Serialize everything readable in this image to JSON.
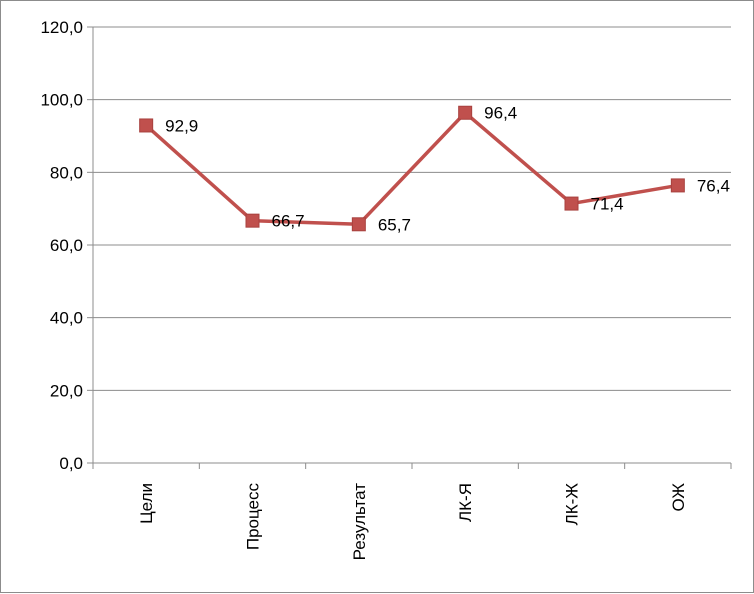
{
  "chart_data": {
    "type": "line",
    "title": "",
    "xlabel": "",
    "ylabel": "",
    "categories": [
      "Цели",
      "Процесс",
      "Результат",
      "ЛК-Я",
      "ЛК-Ж",
      "ОЖ"
    ],
    "series": [
      {
        "values": [
          92.9,
          66.7,
          65.7,
          96.4,
          71.4,
          76.4
        ],
        "data_labels": [
          "92,9",
          "66,7",
          "65,7",
          "96,4",
          "71,4",
          "76,4"
        ],
        "color": "#c0504d",
        "marker": "square"
      }
    ],
    "ylim": [
      0,
      120
    ],
    "y_ticks": [
      0,
      20,
      40,
      60,
      80,
      100,
      120
    ],
    "y_tick_labels": [
      "0,0",
      "20,0",
      "40,0",
      "60,0",
      "80,0",
      "100,0",
      "120,0"
    ],
    "grid": true,
    "legend": "none"
  }
}
